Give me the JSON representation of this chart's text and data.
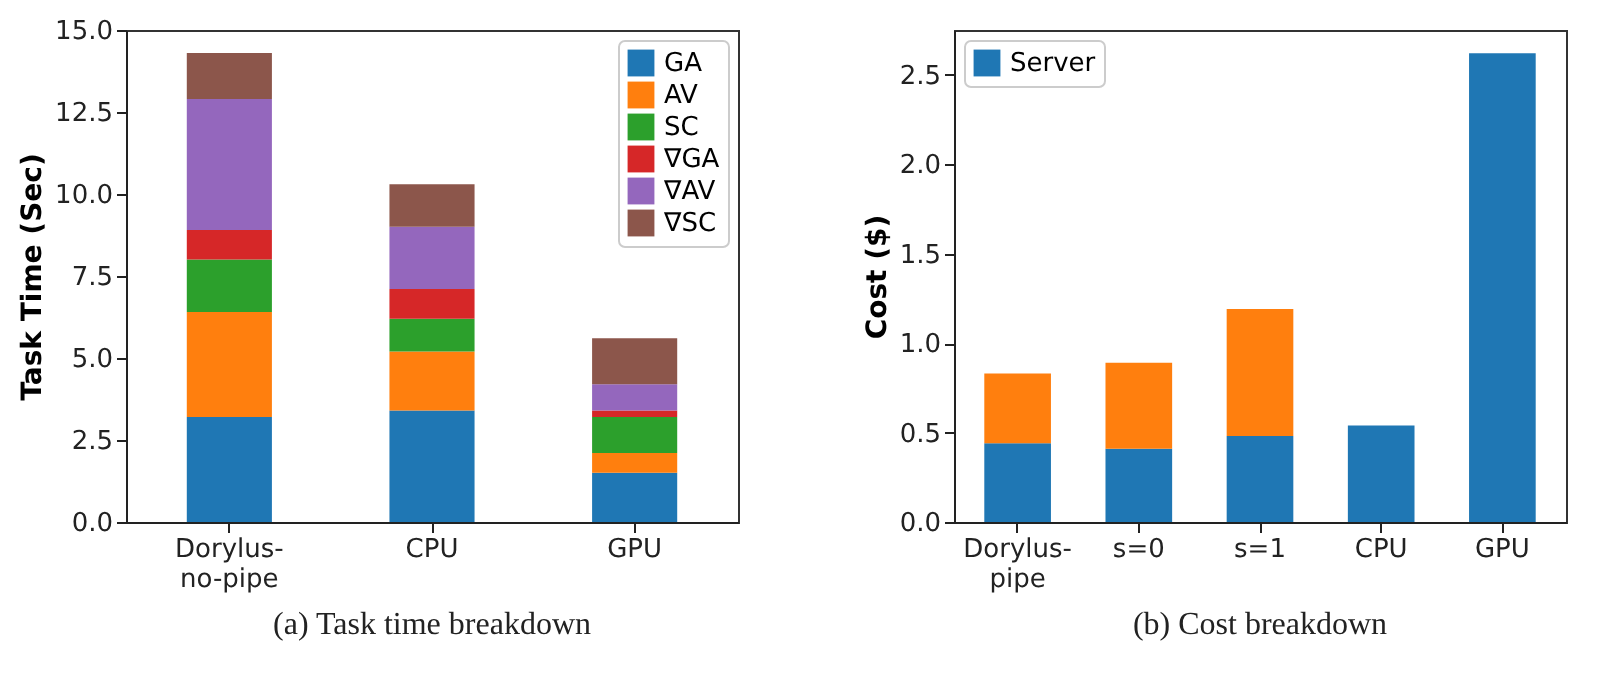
{
  "chart_data": [
    {
      "type": "bar",
      "title": "(a) Task time breakdown",
      "ylabel": "Task Time (Sec)",
      "categories": [
        "Dorylus-no-pipe",
        "CPU",
        "GPU"
      ],
      "stacked": true,
      "ylim": [
        0,
        15
      ],
      "yticks": [
        {
          "value": 0,
          "label": "0.0"
        },
        2.5,
        {
          "value": 5,
          "label": "5.0"
        },
        7.5,
        {
          "value": 10,
          "label": "10.0"
        },
        12.5,
        {
          "value": 15,
          "label": "15.0"
        }
      ],
      "grid": false,
      "legend": "top right",
      "series": [
        {
          "name": "GA",
          "color": "#1f77b4",
          "values": [
            3.2,
            3.4,
            1.5
          ]
        },
        {
          "name": "AV",
          "color": "#ff7f0e",
          "values": [
            3.2,
            1.8,
            0.6
          ]
        },
        {
          "name": "SC",
          "color": "#2ca02c",
          "values": [
            1.6,
            1.0,
            1.1
          ]
        },
        {
          "name": "∇GA",
          "color": "#d62728",
          "values": [
            0.9,
            0.9,
            0.2
          ]
        },
        {
          "name": "∇AV",
          "color": "#9467bd",
          "values": [
            4.0,
            1.9,
            0.8
          ]
        },
        {
          "name": "∇SC",
          "color": "#8c564b",
          "values": [
            1.4,
            1.3,
            1.4
          ]
        }
      ]
    },
    {
      "type": "bar",
      "title": "(b) Cost breakdown",
      "ylabel": "Cost ($)",
      "categories": [
        "Dorylus-pipe",
        "s=0",
        "s=1",
        "CPU",
        "GPU"
      ],
      "stacked": true,
      "ylim": [
        0,
        2.75
      ],
      "yticks": [
        {
          "value": 0,
          "label": "0.0"
        },
        0.5,
        {
          "value": 1,
          "label": "1.0"
        },
        1.5,
        {
          "value": 2,
          "label": "2.0"
        },
        2.5
      ],
      "grid": false,
      "legend": "top left",
      "series": [
        {
          "name": "Server",
          "color": "#1f77b4",
          "values": [
            0.44,
            0.41,
            0.48,
            0.54,
            2.62
          ]
        },
        {
          "color": "#ff7f0e",
          "values": [
            0.39,
            0.48,
            0.71,
            null,
            null
          ]
        }
      ]
    }
  ]
}
